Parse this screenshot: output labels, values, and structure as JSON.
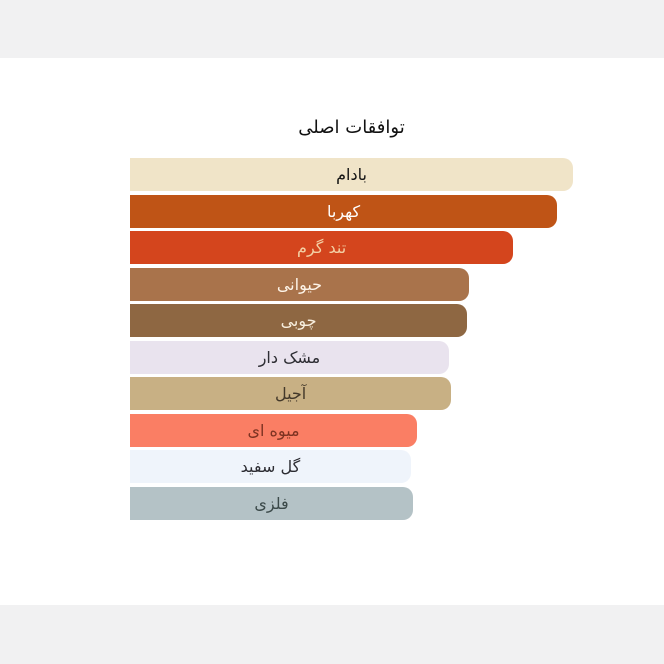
{
  "page": {
    "background_color": "#ffffff",
    "margin_band_color": "#f1f1f2"
  },
  "chart_data": {
    "type": "bar",
    "orientation": "horizontal",
    "title": "توافقات اصلی",
    "xlim": [
      0,
      100
    ],
    "grid": false,
    "legend": false,
    "value_unit": "percent_of_longest_bar",
    "categories": [
      "بادام",
      "کهربا",
      "تند گرم",
      "حیوانی",
      "چوبی",
      "مشک دار",
      "آجیل",
      "میوه ای",
      "گل سفید",
      "فلزی"
    ],
    "values": [
      100,
      96.4,
      86.5,
      76.5,
      76.1,
      72.0,
      72.5,
      64.8,
      63.4,
      63.9
    ],
    "bars": [
      {
        "id": "almond",
        "label": "بادام",
        "value_pct": 100,
        "color": "#f0e4c8",
        "text_color": "#151515"
      },
      {
        "id": "amber",
        "label": "کهربا",
        "value_pct": 96.4,
        "color": "#bf5416",
        "text_color": "#ffffff"
      },
      {
        "id": "warm-spicy",
        "label": "تند گرم",
        "value_pct": 86.5,
        "color": "#d4451d",
        "text_color": "#f3cfa4"
      },
      {
        "id": "animalic",
        "label": "حیوانی",
        "value_pct": 76.5,
        "color": "#a9734b",
        "text_color": "#fdf3e7"
      },
      {
        "id": "woody",
        "label": "چوبی",
        "value_pct": 76.1,
        "color": "#8e6742",
        "text_color": "#f7eede"
      },
      {
        "id": "musky",
        "label": "مشک دار",
        "value_pct": 72.0,
        "color": "#e9e3ee",
        "text_color": "#2d2d33"
      },
      {
        "id": "nutty",
        "label": "آجیل",
        "value_pct": 72.5,
        "color": "#c8b084",
        "text_color": "#43382a"
      },
      {
        "id": "fruity",
        "label": "میوه ای",
        "value_pct": 64.8,
        "color": "#fa7e64",
        "text_color": "#7d3322"
      },
      {
        "id": "white-floral",
        "label": "گل سفید",
        "value_pct": 63.4,
        "color": "#eff4fb",
        "text_color": "#2d2d33"
      },
      {
        "id": "metallic",
        "label": "فلزی",
        "value_pct": 63.9,
        "color": "#b4c2c6",
        "text_color": "#3c4a4a"
      }
    ]
  }
}
